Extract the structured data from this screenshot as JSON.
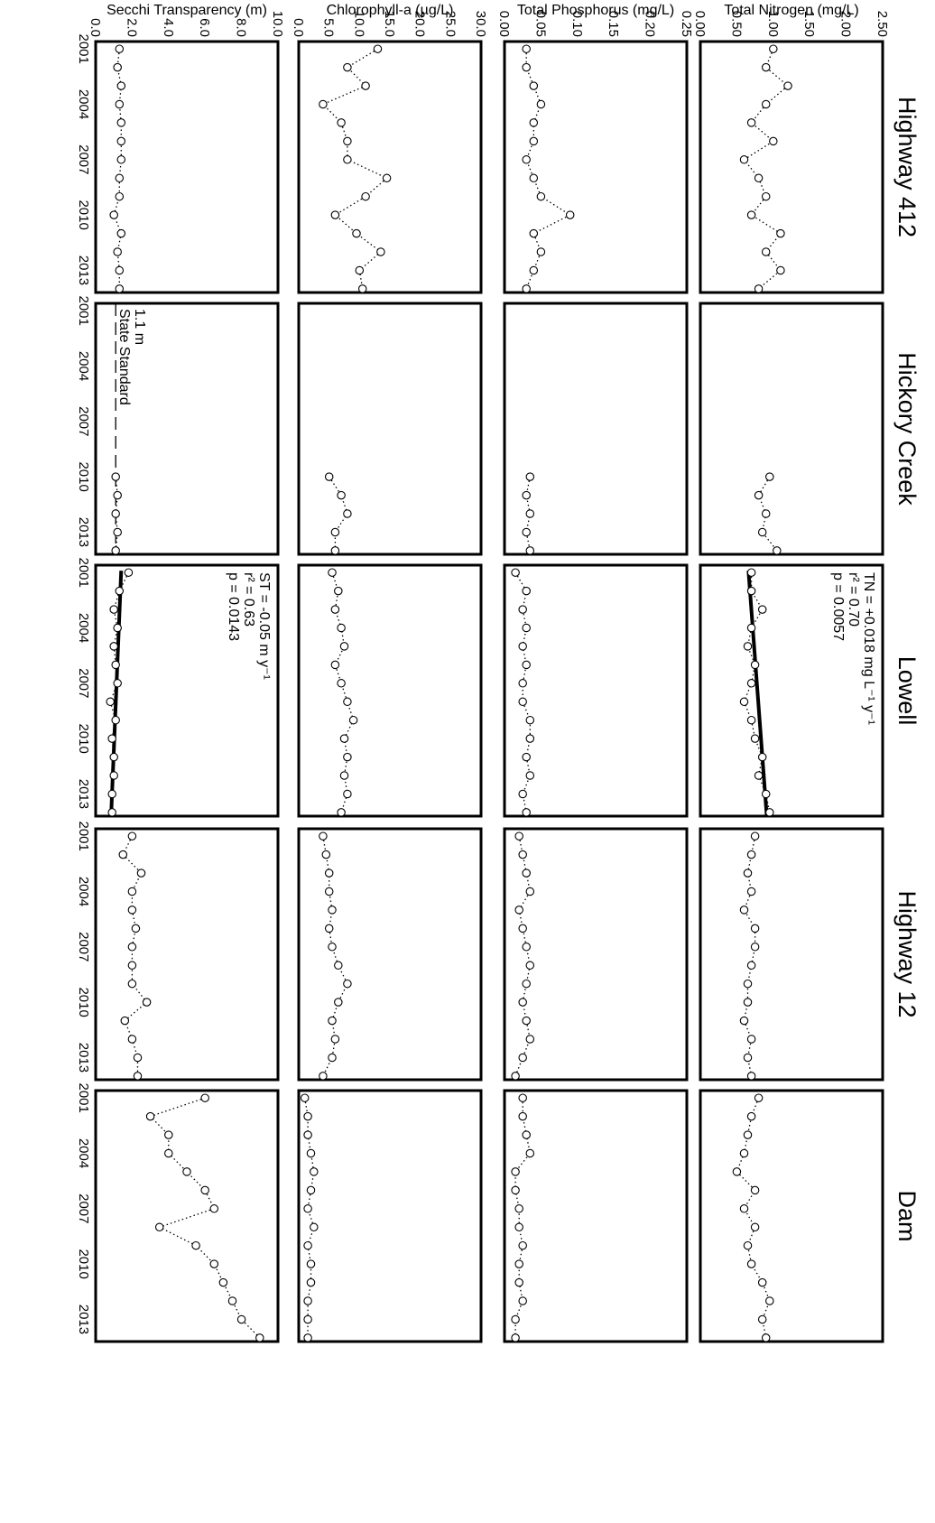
{
  "chart_data": {
    "type": "scatter",
    "x_ticks": [
      "2001",
      "2004",
      "2007",
      "2010",
      "2013"
    ],
    "xlim": [
      2000.6,
      2014.2
    ],
    "sites": [
      "Highway 412",
      "Hickory Creek",
      "Lowell",
      "Highway 12",
      "Dam"
    ],
    "variables": [
      {
        "ylabel": "Total Nitrogen (mg/L)",
        "ylim": [
          0,
          2.5
        ],
        "ticks": [
          {
            "value": 2.5,
            "label": "2.50"
          },
          {
            "value": 2.0,
            "label": "2.00"
          },
          {
            "value": 1.5,
            "label": "1.50"
          },
          {
            "value": 1.0,
            "label": "1.00"
          },
          {
            "value": 0.5,
            "label": "0.50"
          },
          {
            "value": 0.0,
            "label": "0.00"
          }
        ],
        "series": [
          {
            "x": [
              2001,
              2002,
              2003,
              2004,
              2005,
              2006,
              2007,
              2008,
              2009,
              2010,
              2011,
              2012,
              2013,
              2014
            ],
            "y": [
              1.0,
              0.9,
              1.2,
              0.9,
              0.7,
              1.0,
              0.6,
              0.8,
              0.9,
              0.7,
              1.1,
              0.9,
              1.1,
              0.8
            ]
          },
          {
            "x": [
              2010,
              2011,
              2012,
              2013,
              2014
            ],
            "y": [
              0.95,
              0.8,
              0.9,
              0.85,
              1.05
            ]
          },
          {
            "x": [
              2001,
              2002,
              2003,
              2004,
              2005,
              2006,
              2007,
              2008,
              2009,
              2010,
              2011,
              2012,
              2013,
              2014
            ],
            "y": [
              0.7,
              0.7,
              0.85,
              0.7,
              0.65,
              0.75,
              0.7,
              0.6,
              0.7,
              0.75,
              0.85,
              0.8,
              0.9,
              0.95
            ]
          },
          {
            "x": [
              2001,
              2002,
              2003,
              2004,
              2005,
              2006,
              2007,
              2008,
              2009,
              2010,
              2011,
              2012,
              2013,
              2014
            ],
            "y": [
              0.75,
              0.7,
              0.65,
              0.7,
              0.6,
              0.75,
              0.75,
              0.7,
              0.65,
              0.65,
              0.6,
              0.7,
              0.65,
              0.7
            ]
          },
          {
            "x": [
              2001,
              2002,
              2003,
              2004,
              2005,
              2006,
              2007,
              2008,
              2009,
              2010,
              2011,
              2012,
              2013,
              2014
            ],
            "y": [
              0.8,
              0.7,
              0.65,
              0.6,
              0.5,
              0.75,
              0.6,
              0.75,
              0.65,
              0.7,
              0.85,
              0.95,
              0.85,
              0.9
            ]
          }
        ],
        "trend": {
          "site": "Lowell",
          "y_start": 0.66,
          "y_end": 0.91,
          "lines": [
            "TN = +0.018 mg L⁻¹ y⁻¹",
            "r² = 0.70",
            "p = 0.0057"
          ]
        }
      },
      {
        "ylabel": "Total Phosphorus (mg/L)",
        "ylim": [
          0,
          0.25
        ],
        "ticks": [
          {
            "value": 0.25,
            "label": "0.25"
          },
          {
            "value": 0.2,
            "label": "0.20"
          },
          {
            "value": 0.15,
            "label": "0.15"
          },
          {
            "value": 0.1,
            "label": "0.10"
          },
          {
            "value": 0.05,
            "label": "0.05"
          },
          {
            "value": 0.0,
            "label": "0.00"
          }
        ],
        "series": [
          {
            "x": [
              2001,
              2002,
              2003,
              2004,
              2005,
              2006,
              2007,
              2008,
              2009,
              2010,
              2011,
              2012,
              2013,
              2014
            ],
            "y": [
              0.03,
              0.03,
              0.04,
              0.05,
              0.04,
              0.04,
              0.03,
              0.04,
              0.05,
              0.09,
              0.04,
              0.05,
              0.04,
              0.03
            ]
          },
          {
            "x": [
              2010,
              2011,
              2012,
              2013,
              2014
            ],
            "y": [
              0.035,
              0.03,
              0.035,
              0.03,
              0.035
            ]
          },
          {
            "x": [
              2001,
              2002,
              2003,
              2004,
              2005,
              2006,
              2007,
              2008,
              2009,
              2010,
              2011,
              2012,
              2013,
              2014
            ],
            "y": [
              0.015,
              0.03,
              0.025,
              0.03,
              0.025,
              0.03,
              0.025,
              0.025,
              0.035,
              0.035,
              0.03,
              0.035,
              0.025,
              0.03
            ]
          },
          {
            "x": [
              2001,
              2002,
              2003,
              2004,
              2005,
              2006,
              2007,
              2008,
              2009,
              2010,
              2011,
              2012,
              2013,
              2014
            ],
            "y": [
              0.02,
              0.025,
              0.03,
              0.035,
              0.02,
              0.025,
              0.03,
              0.035,
              0.03,
              0.025,
              0.03,
              0.035,
              0.025,
              0.015
            ]
          },
          {
            "x": [
              2001,
              2002,
              2003,
              2004,
              2005,
              2006,
              2007,
              2008,
              2009,
              2010,
              2011,
              2012,
              2013,
              2014
            ],
            "y": [
              0.025,
              0.025,
              0.03,
              0.035,
              0.015,
              0.015,
              0.02,
              0.02,
              0.025,
              0.02,
              0.02,
              0.025,
              0.015,
              0.015
            ]
          }
        ]
      },
      {
        "ylabel": "Chlorophyll-a (µg/L)",
        "ylim": [
          0,
          30
        ],
        "ticks": [
          {
            "value": 30,
            "label": "30.0"
          },
          {
            "value": 25,
            "label": "25.0"
          },
          {
            "value": 20,
            "label": "20.0"
          },
          {
            "value": 15,
            "label": "15.0"
          },
          {
            "value": 10,
            "label": "10.0"
          },
          {
            "value": 5,
            "label": "5.0"
          },
          {
            "value": 0,
            "label": "0.0"
          }
        ],
        "series": [
          {
            "x": [
              2001,
              2002,
              2003,
              2004,
              2005,
              2006,
              2007,
              2008,
              2009,
              2010,
              2011,
              2012,
              2013,
              2014
            ],
            "y": [
              13.0,
              8.0,
              11.0,
              4.0,
              7.0,
              8.0,
              8.0,
              14.5,
              11.0,
              6.0,
              9.5,
              13.5,
              10.0,
              10.5
            ]
          },
          {
            "x": [
              2010,
              2011,
              2012,
              2013,
              2014
            ],
            "y": [
              5.0,
              7.0,
              8.0,
              6.0,
              6.0
            ]
          },
          {
            "x": [
              2001,
              2002,
              2003,
              2004,
              2005,
              2006,
              2007,
              2008,
              2009,
              2010,
              2011,
              2012,
              2013,
              2014
            ],
            "y": [
              5.5,
              6.5,
              6.0,
              7.0,
              7.5,
              6.0,
              7.0,
              8.0,
              9.0,
              7.5,
              8.0,
              7.5,
              8.0,
              7.0
            ]
          },
          {
            "x": [
              2001,
              2002,
              2003,
              2004,
              2005,
              2006,
              2007,
              2008,
              2009,
              2010,
              2011,
              2012,
              2013,
              2014
            ],
            "y": [
              4.0,
              4.5,
              5.0,
              5.0,
              5.5,
              5.0,
              5.5,
              6.5,
              8.0,
              6.5,
              5.5,
              6.0,
              5.5,
              4.0
            ]
          },
          {
            "x": [
              2001,
              2002,
              2003,
              2004,
              2005,
              2006,
              2007,
              2008,
              2009,
              2010,
              2011,
              2012,
              2013,
              2014
            ],
            "y": [
              1.0,
              1.5,
              1.5,
              2.0,
              2.5,
              2.0,
              1.5,
              2.5,
              1.5,
              2.0,
              2.0,
              1.5,
              1.5,
              1.5
            ]
          }
        ]
      },
      {
        "ylabel": "Secchi Transparency (m)",
        "ylim": [
          0,
          10
        ],
        "ticks": [
          {
            "value": 10,
            "label": "10.0"
          },
          {
            "value": 8,
            "label": "8.0"
          },
          {
            "value": 6,
            "label": "6.0"
          },
          {
            "value": 4,
            "label": "4.0"
          },
          {
            "value": 2,
            "label": "2.0"
          },
          {
            "value": 0,
            "label": "0.0"
          }
        ],
        "series": [
          {
            "x": [
              2001,
              2002,
              2003,
              2004,
              2005,
              2006,
              2007,
              2008,
              2009,
              2010,
              2011,
              2012,
              2013,
              2014
            ],
            "y": [
              1.3,
              1.2,
              1.4,
              1.3,
              1.4,
              1.4,
              1.4,
              1.3,
              1.3,
              1.0,
              1.4,
              1.2,
              1.3,
              1.3
            ]
          },
          {
            "x": [
              2010,
              2011,
              2012,
              2013,
              2014
            ],
            "y": [
              1.1,
              1.2,
              1.1,
              1.2,
              1.1
            ]
          },
          {
            "x": [
              2001,
              2002,
              2003,
              2004,
              2005,
              2006,
              2007,
              2008,
              2009,
              2010,
              2011,
              2012,
              2013,
              2014
            ],
            "y": [
              1.8,
              1.3,
              1.0,
              1.2,
              1.0,
              1.1,
              1.2,
              0.8,
              1.1,
              0.9,
              1.0,
              1.0,
              0.9,
              0.9
            ]
          },
          {
            "x": [
              2001,
              2002,
              2003,
              2004,
              2005,
              2006,
              2007,
              2008,
              2009,
              2010,
              2011,
              2012,
              2013,
              2014
            ],
            "y": [
              2.0,
              1.5,
              2.5,
              2.0,
              2.0,
              2.2,
              2.0,
              2.0,
              2.0,
              2.8,
              1.6,
              2.0,
              2.3,
              2.3
            ]
          },
          {
            "x": [
              2001,
              2002,
              2003,
              2004,
              2005,
              2006,
              2007,
              2008,
              2009,
              2010,
              2011,
              2012,
              2013,
              2014
            ],
            "y": [
              6.0,
              3.0,
              4.0,
              4.0,
              5.0,
              6.0,
              6.5,
              3.5,
              5.5,
              6.5,
              7.0,
              7.5,
              8.0,
              9.0
            ]
          }
        ],
        "reference": {
          "site": "Hickory Creek",
          "value": 1.1,
          "labels": [
            "1.1 m",
            "State Standard"
          ]
        },
        "trend": {
          "site": "Lowell",
          "y_start": 1.4,
          "y_end": 0.85,
          "lines": [
            "ST = -0.05 m y⁻¹",
            "r² = 0.63",
            "p = 0.0143"
          ]
        }
      }
    ]
  }
}
